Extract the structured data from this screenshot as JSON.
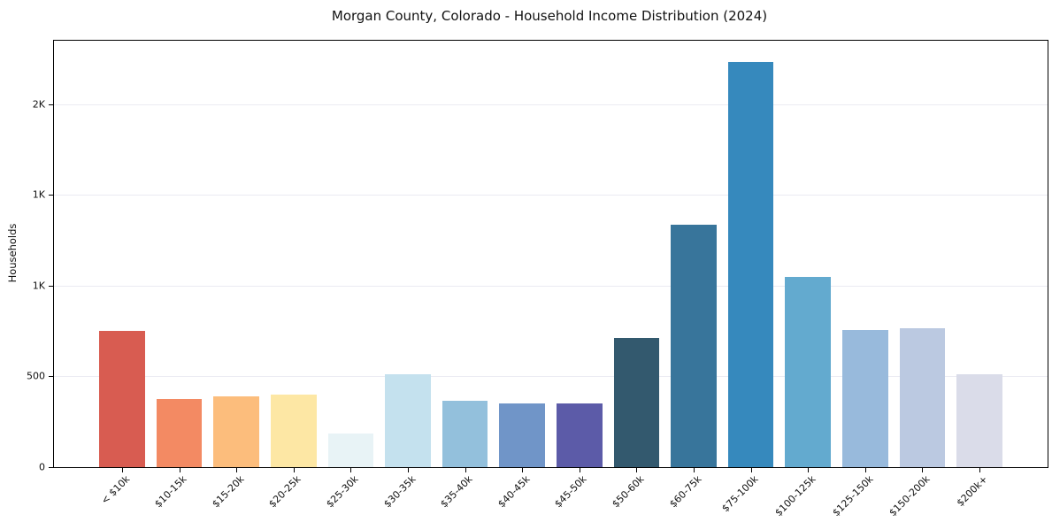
{
  "chart_data": {
    "type": "bar",
    "title": "Morgan County, Colorado - Household Income Distribution (2024)",
    "xlabel": "",
    "ylabel": "Households",
    "categories": [
      "< $10k",
      "$10-15k",
      "$15-20k",
      "$20-25k",
      "$25-30k",
      "$30-35k",
      "$35-40k",
      "$40-45k",
      "$45-50k",
      "$50-60k",
      "$60-75k",
      "$75-100k",
      "$100-125k",
      "$125-150k",
      "$150-200k",
      "$200k+"
    ],
    "values": [
      750,
      375,
      390,
      400,
      185,
      510,
      365,
      352,
      350,
      710,
      1335,
      2233,
      1050,
      755,
      765,
      510
    ],
    "bar_colors": [
      "#d85c51",
      "#f38a63",
      "#fcbd7c",
      "#fde7a4",
      "#e8f3f6",
      "#c4e1ee",
      "#93c0dc",
      "#7095c8",
      "#5c5ba8",
      "#33596e",
      "#38759b",
      "#3689bd",
      "#63aacf",
      "#98badc",
      "#bbc9e1",
      "#dadce9"
    ],
    "ylim": [
      0,
      2350
    ],
    "yticks": {
      "values": [
        0,
        500,
        1000,
        1500,
        2000
      ],
      "labels": [
        "0",
        "500",
        "1K",
        "1K",
        "2K"
      ]
    },
    "grid": "horizontal",
    "legend": "none",
    "colors": {
      "background": "#ffffff",
      "spine": "#000000",
      "gridline": "#ebebf2",
      "text": "#111111"
    }
  }
}
